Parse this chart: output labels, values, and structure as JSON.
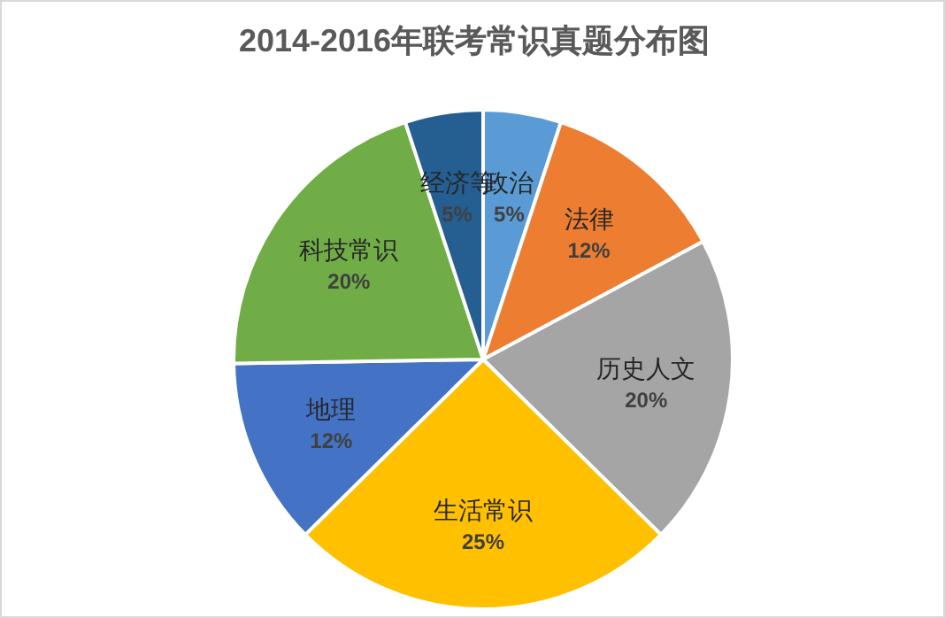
{
  "chart_data": {
    "type": "pie",
    "title": "2014-2016年联考常识真题分布图",
    "categories": [
      "政治",
      "法律",
      "历史人文",
      "生活常识",
      "地理",
      "科技常识",
      "经济等"
    ],
    "values": [
      5,
      12,
      20,
      25,
      12,
      20,
      5
    ],
    "value_labels": [
      "5%",
      "12%",
      "20%",
      "25%",
      "12%",
      "20%",
      "5%"
    ],
    "colors": [
      "#5b9bd5",
      "#ed7d31",
      "#a5a5a5",
      "#ffc000",
      "#4472c4",
      "#70ad47",
      "#255e91"
    ],
    "legend": false
  }
}
